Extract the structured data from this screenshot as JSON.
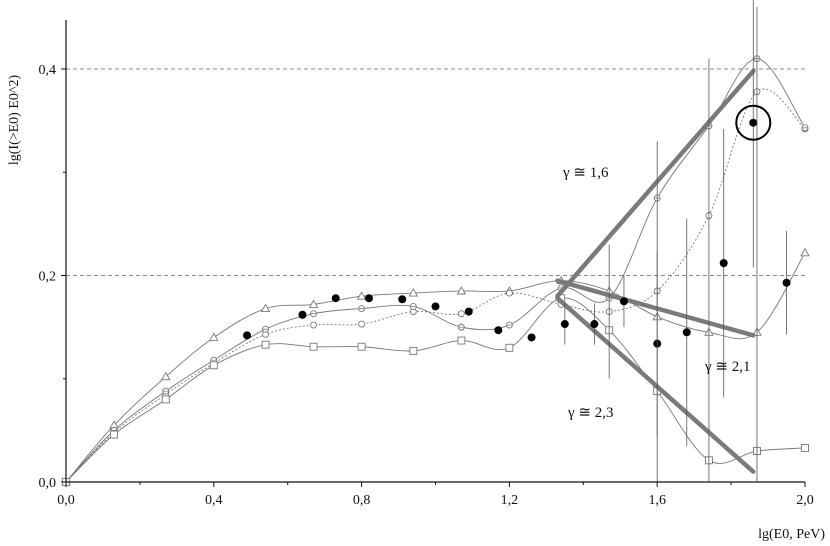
{
  "chart_data": {
    "type": "line",
    "xlabel": "lg(E0, PeV)",
    "ylabel": "lg(I(>E0) E0^2)",
    "xlim": [
      0.0,
      2.0
    ],
    "ylim": [
      0.0,
      0.45
    ],
    "x_ticks": [
      "0,0",
      "0,4",
      "0,8",
      "1,2",
      "1,6",
      "2,0"
    ],
    "x_tick_values": [
      0.0,
      0.4,
      0.8,
      1.2,
      1.6,
      2.0
    ],
    "y_ticks": [
      "0,0",
      "0,2",
      "0,4"
    ],
    "y_tick_values": [
      0.0,
      0.2,
      0.4
    ],
    "reference_lines_y": [
      0.2,
      0.4
    ],
    "series": [
      {
        "marker": "triangle",
        "color": "#777777",
        "x": [
          0.0,
          0.13,
          0.27,
          0.4,
          0.54,
          0.67,
          0.8,
          0.94,
          1.07,
          1.2,
          1.34,
          1.47,
          1.6,
          1.74,
          1.87,
          2.0
        ],
        "y": [
          0.0,
          0.055,
          0.102,
          0.14,
          0.168,
          0.172,
          0.18,
          0.183,
          0.185,
          0.185,
          0.195,
          0.185,
          0.16,
          0.145,
          0.145,
          0.222
        ]
      },
      {
        "marker": "circle",
        "color": "#777777",
        "x": [
          0.0,
          0.13,
          0.27,
          0.4,
          0.54,
          0.67,
          0.8,
          0.94,
          1.07,
          1.2,
          1.34,
          1.47,
          1.6,
          1.74,
          1.87,
          2.0
        ],
        "y": [
          0.0,
          0.048,
          0.085,
          0.115,
          0.143,
          0.152,
          0.153,
          0.165,
          0.163,
          0.183,
          0.172,
          0.165,
          0.185,
          0.258,
          0.378,
          0.342
        ]
      },
      {
        "marker": "diamond",
        "color": "#777777",
        "x": [
          0.0,
          0.13,
          0.27,
          0.4,
          0.54,
          0.67,
          0.8,
          0.94,
          1.07,
          1.2,
          1.34,
          1.47,
          1.6,
          1.74,
          1.87,
          2.0
        ],
        "y": [
          0.0,
          0.05,
          0.088,
          0.118,
          0.148,
          0.163,
          0.168,
          0.17,
          0.15,
          0.152,
          0.188,
          0.178,
          0.275,
          0.345,
          0.41,
          0.343
        ]
      },
      {
        "marker": "square",
        "color": "#777777",
        "x": [
          0.0,
          0.13,
          0.27,
          0.4,
          0.54,
          0.67,
          0.8,
          0.94,
          1.07,
          1.2,
          1.34,
          1.47,
          1.6,
          1.74,
          1.87,
          2.0
        ],
        "y": [
          0.0,
          0.046,
          0.08,
          0.113,
          0.133,
          0.131,
          0.131,
          0.127,
          0.137,
          0.13,
          0.178,
          0.147,
          0.088,
          0.021,
          0.03,
          0.033
        ]
      }
    ],
    "experimental_points": {
      "marker": "filled-circle",
      "color": "#000000",
      "x": [
        0.49,
        0.64,
        0.73,
        0.82,
        0.91,
        1.0,
        1.09,
        1.17,
        1.26,
        1.35,
        1.43,
        1.51,
        1.6,
        1.68,
        1.78,
        1.86,
        1.95
      ],
      "y": [
        0.142,
        0.162,
        0.178,
        0.178,
        0.177,
        0.17,
        0.165,
        0.147,
        0.14,
        0.153,
        0.153,
        0.175,
        0.134,
        0.145,
        0.212,
        0.348,
        0.193
      ],
      "err": [
        0.0,
        0.0,
        0.0,
        0.0,
        0.0,
        0.0,
        0.0,
        0.0,
        0.0,
        0.02,
        0.02,
        0.025,
        0.09,
        0.11,
        0.13,
        0.14,
        0.05
      ]
    },
    "highlighted_point": {
      "x": 1.86,
      "y": 0.348
    },
    "fit_lines": [
      {
        "label": "γ ≅ 1,6",
        "x": [
          1.33,
          1.86
        ],
        "y": [
          0.18,
          0.398
        ],
        "color": "#7a7a7a"
      },
      {
        "label": "γ ≅ 2,1",
        "x": [
          1.33,
          1.86
        ],
        "y": [
          0.195,
          0.142
        ],
        "color": "#7a7a7a"
      },
      {
        "label": "γ ≅ 2,3",
        "x": [
          1.33,
          1.86
        ],
        "y": [
          0.178,
          0.01
        ],
        "color": "#7a7a7a"
      }
    ],
    "fit_labels": [
      "γ ≅ 1,6",
      "γ ≅ 2,1",
      "γ ≅ 2,3"
    ],
    "grid": false
  }
}
